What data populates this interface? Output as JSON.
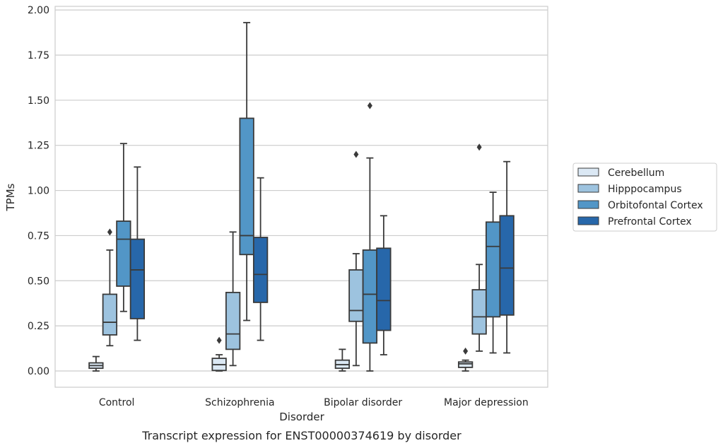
{
  "caption": "Transcript expression for ENST00000374619 by disorder",
  "chart_data": {
    "type": "box",
    "title": "",
    "xlabel": "Disorder",
    "ylabel": "TPMs",
    "ylim": [
      -0.09,
      2.02
    ],
    "yticks": [
      0.0,
      0.25,
      0.5,
      0.75,
      1.0,
      1.25,
      1.5,
      1.75,
      2.0
    ],
    "ytick_labels": [
      "0.00",
      "0.25",
      "0.50",
      "0.75",
      "1.00",
      "1.25",
      "1.50",
      "1.75",
      "2.00"
    ],
    "grid": "horizontal",
    "legend_position": "right",
    "categories": [
      "Control",
      "Schizophrenia",
      "Bipolar disorder",
      "Major depression"
    ],
    "series": [
      {
        "name": "Cerebellum",
        "color": "#dbe8f4",
        "boxes": [
          {
            "whisker_low": 0.0,
            "q1": 0.015,
            "median": 0.03,
            "q3": 0.045,
            "whisker_high": 0.08,
            "outliers": []
          },
          {
            "whisker_low": 0.0,
            "q1": 0.003,
            "median": 0.035,
            "q3": 0.07,
            "whisker_high": 0.09,
            "outliers": [
              0.17
            ]
          },
          {
            "whisker_low": 0.0,
            "q1": 0.015,
            "median": 0.035,
            "q3": 0.06,
            "whisker_high": 0.12,
            "outliers": []
          },
          {
            "whisker_low": 0.0,
            "q1": 0.02,
            "median": 0.04,
            "q3": 0.05,
            "whisker_high": 0.06,
            "outliers": [
              0.11
            ]
          }
        ]
      },
      {
        "name": "Hipppocampus",
        "color": "#9dc3df",
        "boxes": [
          {
            "whisker_low": 0.14,
            "q1": 0.2,
            "median": 0.27,
            "q3": 0.425,
            "whisker_high": 0.67,
            "outliers": [
              0.77
            ]
          },
          {
            "whisker_low": 0.03,
            "q1": 0.12,
            "median": 0.205,
            "q3": 0.435,
            "whisker_high": 0.77,
            "outliers": []
          },
          {
            "whisker_low": 0.03,
            "q1": 0.275,
            "median": 0.335,
            "q3": 0.56,
            "whisker_high": 0.65,
            "outliers": [
              1.2
            ]
          },
          {
            "whisker_low": 0.11,
            "q1": 0.205,
            "median": 0.3,
            "q3": 0.45,
            "whisker_high": 0.59,
            "outliers": [
              1.24
            ]
          }
        ]
      },
      {
        "name": "Orbitofontal Cortex",
        "color": "#5296c7",
        "boxes": [
          {
            "whisker_low": 0.33,
            "q1": 0.47,
            "median": 0.73,
            "q3": 0.83,
            "whisker_high": 1.26,
            "outliers": []
          },
          {
            "whisker_low": 0.28,
            "q1": 0.645,
            "median": 0.75,
            "q3": 1.4,
            "whisker_high": 1.93,
            "outliers": []
          },
          {
            "whisker_low": 0.0,
            "q1": 0.155,
            "median": 0.425,
            "q3": 0.67,
            "whisker_high": 1.18,
            "outliers": [
              1.47
            ]
          },
          {
            "whisker_low": 0.1,
            "q1": 0.3,
            "median": 0.69,
            "q3": 0.825,
            "whisker_high": 0.99,
            "outliers": []
          }
        ]
      },
      {
        "name": "Prefrontal Cortex",
        "color": "#2767aa",
        "boxes": [
          {
            "whisker_low": 0.17,
            "q1": 0.29,
            "median": 0.56,
            "q3": 0.73,
            "whisker_high": 1.13,
            "outliers": []
          },
          {
            "whisker_low": 0.17,
            "q1": 0.38,
            "median": 0.535,
            "q3": 0.74,
            "whisker_high": 1.07,
            "outliers": []
          },
          {
            "whisker_low": 0.09,
            "q1": 0.225,
            "median": 0.39,
            "q3": 0.68,
            "whisker_high": 0.86,
            "outliers": []
          },
          {
            "whisker_low": 0.1,
            "q1": 0.31,
            "median": 0.57,
            "q3": 0.86,
            "whisker_high": 1.16,
            "outliers": []
          }
        ]
      }
    ]
  }
}
